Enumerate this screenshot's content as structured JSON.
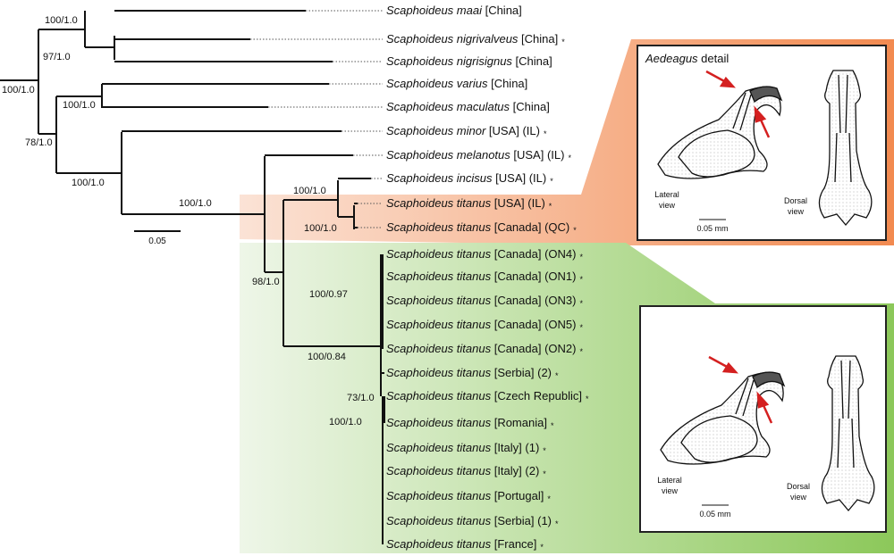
{
  "genus": "Scaphoideus",
  "taxa": [
    {
      "species": "maai",
      "loc": "[China]",
      "star": false
    },
    {
      "species": "nigrivalveus",
      "loc": "[China]",
      "star": true
    },
    {
      "species": "nigrisignus",
      "loc": "[China]",
      "star": false
    },
    {
      "species": "varius",
      "loc": "[China]",
      "star": false
    },
    {
      "species": "maculatus",
      "loc": "[China]",
      "star": false
    },
    {
      "species": "minor",
      "loc": "[USA] (IL)",
      "star": true
    },
    {
      "species": "melanotus",
      "loc": "[USA] (IL)",
      "star": true
    },
    {
      "species": "incisus",
      "loc": "[USA] (IL)",
      "star": true
    },
    {
      "species": "titanus",
      "loc": "[USA] (IL)",
      "star": true
    },
    {
      "species": "titanus",
      "loc": "[Canada] (QC)",
      "star": true
    },
    {
      "species": "titanus",
      "loc": "[Canada] (ON4)",
      "star": true
    },
    {
      "species": "titanus",
      "loc": "[Canada] (ON1)",
      "star": true
    },
    {
      "species": "titanus",
      "loc": "[Canada] (ON3)",
      "star": true
    },
    {
      "species": "titanus",
      "loc": "[Canada] (ON5)",
      "star": true
    },
    {
      "species": "titanus",
      "loc": "[Canada] (ON2)",
      "star": true
    },
    {
      "species": "titanus",
      "loc": "[Serbia] (2)",
      "star": true
    },
    {
      "species": "titanus",
      "loc": "[Czech Republic]",
      "star": true
    },
    {
      "species": "titanus",
      "loc": "[Romania]",
      "star": true
    },
    {
      "species": "titanus",
      "loc": "[Italy] (1)",
      "star": true
    },
    {
      "species": "titanus",
      "loc": "[Italy] (2)",
      "star": true
    },
    {
      "species": "titanus",
      "loc": "[Portugal]",
      "star": true
    },
    {
      "species": "titanus",
      "loc": "[Serbia] (1)",
      "star": true
    },
    {
      "species": "titanus",
      "loc": "[France]",
      "star": true
    }
  ],
  "star_symbol": "*",
  "support": [
    "100/1.0",
    "97/1.0",
    "100/1.0",
    "100/1.0",
    "78/1.0",
    "100/1.0",
    "100/1.0",
    "98/1.0",
    "100/1.0",
    "100/1.0",
    "100/0.97",
    "100/0.84",
    "73/1.0",
    "100/1.0"
  ],
  "tree_scale": "0.05",
  "inset": {
    "title_italic": "Aedeagus",
    "title_rest": " detail",
    "lateral": "Lateral view",
    "dorsal": "Dorsal view",
    "scale": "0.05 mm"
  },
  "colors": {
    "orange": "#f28a50",
    "green": "#8cc85a",
    "arrow": "#d42020"
  }
}
